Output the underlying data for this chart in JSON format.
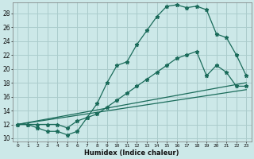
{
  "xlabel": "Humidex (Indice chaleur)",
  "bg_color": "#cce8e8",
  "grid_color": "#aacccc",
  "line_color": "#1a6b5a",
  "xlim": [
    -0.5,
    23.5
  ],
  "ylim": [
    9.5,
    29.5
  ],
  "xticks": [
    0,
    1,
    2,
    3,
    4,
    5,
    6,
    7,
    8,
    9,
    10,
    11,
    12,
    13,
    14,
    15,
    16,
    17,
    18,
    19,
    20,
    21,
    22,
    23
  ],
  "yticks": [
    10,
    12,
    14,
    16,
    18,
    20,
    22,
    24,
    26,
    28
  ],
  "line1_x": [
    0,
    1,
    2,
    3,
    4,
    5,
    6,
    7,
    8,
    9,
    10,
    11,
    12,
    13,
    14,
    15,
    16,
    17,
    18,
    19,
    20,
    21,
    22,
    23
  ],
  "line1_y": [
    12,
    12,
    11.5,
    11,
    11,
    10.5,
    11,
    13,
    15,
    18,
    20.5,
    21,
    23.5,
    25.5,
    27.5,
    29,
    29.2,
    28.8,
    29,
    28.5,
    25,
    24.5,
    22,
    19
  ],
  "line2_x": [
    0,
    1,
    2,
    3,
    4,
    5,
    6,
    7,
    8,
    9,
    10,
    11,
    12,
    13,
    14,
    15,
    16,
    17,
    18,
    19,
    20,
    21,
    22,
    23
  ],
  "line2_y": [
    12,
    12,
    12,
    12,
    12,
    11.5,
    12.5,
    13,
    13.5,
    14.5,
    15.5,
    16.5,
    17.5,
    18.5,
    19.5,
    20.5,
    21.5,
    22,
    22.5,
    19,
    20.5,
    19.5,
    17.5,
    17.5
  ],
  "line3_x": [
    0,
    23
  ],
  "line3_y": [
    12,
    18
  ],
  "line4_x": [
    0,
    23
  ],
  "line4_y": [
    12,
    17
  ]
}
